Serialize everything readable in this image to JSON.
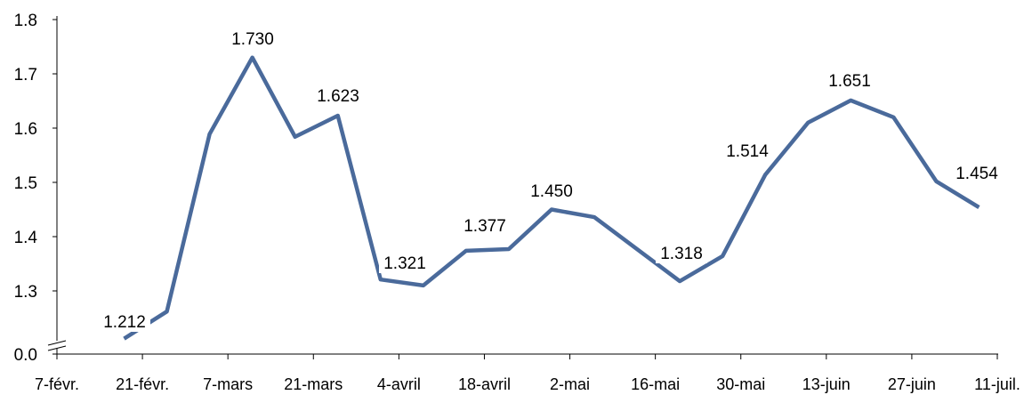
{
  "chart_data": {
    "type": "line",
    "title": "",
    "xlabel": "",
    "ylabel": "",
    "y_axis_break": true,
    "y_ticks": [
      "0.0",
      "1.3",
      "1.4",
      "1.5",
      "1.6",
      "1.7",
      "1.8"
    ],
    "ylim": [
      1.3,
      1.8
    ],
    "x_tick_labels": [
      "7-févr.",
      "21-févr.",
      "7-mars",
      "21-mars",
      "4-avril",
      "18-avril",
      "2-mai",
      "16-mai",
      "30-mai",
      "13-juin",
      "27-juin",
      "11-juil."
    ],
    "grid": false,
    "legend": "none",
    "line_color": "#4a6a9b",
    "series": [
      {
        "x": [
          "18-févr.",
          "25-févr.",
          "4-mars",
          "11-mars",
          "18-mars",
          "25-mars",
          "1-avril",
          "8-avril",
          "15-avril",
          "22-avril",
          "29-avril",
          "6-mai",
          "13-mai",
          "20-mai",
          "27-mai",
          "3-juin",
          "10-juin",
          "17-juin",
          "24-juin",
          "1-juil.",
          "8-juil."
        ],
        "values": [
          1.212,
          1.262,
          1.589,
          1.73,
          1.584,
          1.623,
          1.321,
          1.31,
          1.374,
          1.377,
          1.45,
          1.436,
          1.377,
          1.318,
          1.364,
          1.514,
          1.61,
          1.651,
          1.62,
          1.502,
          1.454
        ],
        "data_labels": [
          "1.212",
          null,
          null,
          "1.730",
          null,
          "1.623",
          "1.321",
          null,
          null,
          "1.377",
          "1.450",
          null,
          null,
          "1.318",
          null,
          "1.514",
          null,
          "1.651",
          null,
          null,
          "1.454"
        ]
      }
    ]
  }
}
